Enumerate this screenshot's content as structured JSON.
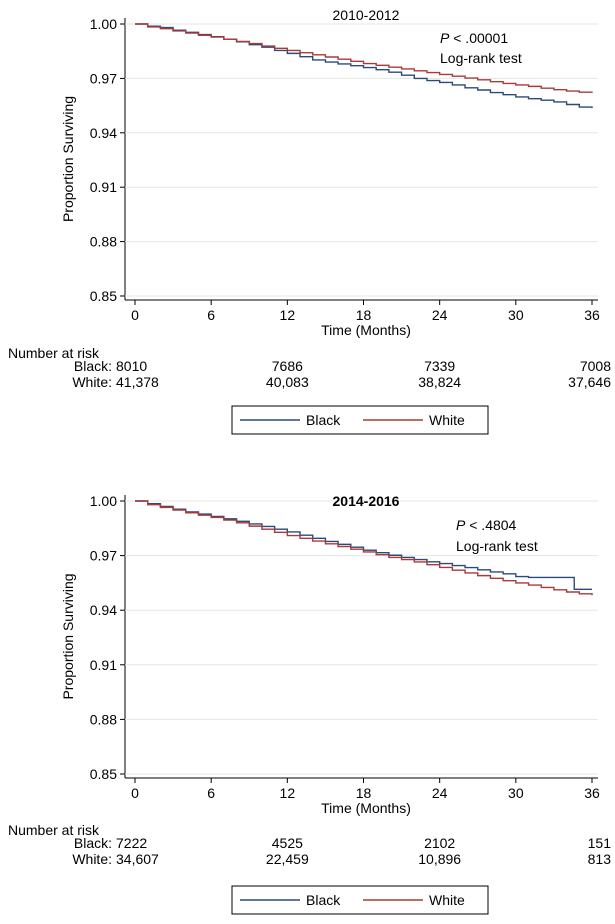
{
  "chart_data": [
    {
      "type": "line",
      "title": "2010-2012",
      "title_bold": false,
      "xlabel": "Time (Months)",
      "ylabel": "Proportion Surviving",
      "xlim": [
        0,
        36
      ],
      "ylim": [
        0.85,
        1.0
      ],
      "xticks": [
        "0",
        "6",
        "12",
        "18",
        "24",
        "30",
        "36"
      ],
      "yticks": [
        "0.85",
        "0.88",
        "0.91",
        "0.94",
        "0.97",
        "1.00"
      ],
      "annotation": {
        "p_label": "P",
        "p_value": "< .00001",
        "test": "Log-rank test"
      },
      "series": [
        {
          "name": "Black",
          "color": "#2b4a78",
          "points": [
            [
              0,
              1.0
            ],
            [
              1,
              0.9988
            ],
            [
              2,
              0.998
            ],
            [
              3,
              0.9966
            ],
            [
              4,
              0.9954
            ],
            [
              5,
              0.9942
            ],
            [
              6,
              0.993
            ],
            [
              7,
              0.9916
            ],
            [
              8,
              0.9902
            ],
            [
              9,
              0.9886
            ],
            [
              10,
              0.9872
            ],
            [
              11,
              0.9854
            ],
            [
              12,
              0.9838
            ],
            [
              13,
              0.982
            ],
            [
              14,
              0.9802
            ],
            [
              15,
              0.979
            ],
            [
              16,
              0.978
            ],
            [
              17,
              0.977
            ],
            [
              18,
              0.976
            ],
            [
              19,
              0.9748
            ],
            [
              20,
              0.9734
            ],
            [
              21,
              0.9718
            ],
            [
              22,
              0.97
            ],
            [
              23,
              0.9688
            ],
            [
              24,
              0.9678
            ],
            [
              25,
              0.9664
            ],
            [
              26,
              0.9648
            ],
            [
              27,
              0.9636
            ],
            [
              28,
              0.9622
            ],
            [
              29,
              0.961
            ],
            [
              30,
              0.9598
            ],
            [
              31,
              0.9588
            ],
            [
              32,
              0.958
            ],
            [
              33,
              0.957
            ],
            [
              34,
              0.9556
            ],
            [
              35,
              0.9542
            ],
            [
              36,
              0.9536
            ]
          ]
        },
        {
          "name": "White",
          "color": "#a83a3a",
          "points": [
            [
              0,
              1.0
            ],
            [
              1,
              0.9984
            ],
            [
              2,
              0.9974
            ],
            [
              3,
              0.9962
            ],
            [
              4,
              0.995
            ],
            [
              5,
              0.9938
            ],
            [
              6,
              0.9928
            ],
            [
              7,
              0.9916
            ],
            [
              8,
              0.9904
            ],
            [
              9,
              0.9892
            ],
            [
              10,
              0.9878
            ],
            [
              11,
              0.9866
            ],
            [
              12,
              0.9854
            ],
            [
              13,
              0.9842
            ],
            [
              14,
              0.983
            ],
            [
              15,
              0.9818
            ],
            [
              16,
              0.9806
            ],
            [
              17,
              0.9794
            ],
            [
              18,
              0.9782
            ],
            [
              19,
              0.9772
            ],
            [
              20,
              0.9762
            ],
            [
              21,
              0.9752
            ],
            [
              22,
              0.9742
            ],
            [
              23,
              0.9732
            ],
            [
              24,
              0.9722
            ],
            [
              25,
              0.9712
            ],
            [
              26,
              0.9702
            ],
            [
              27,
              0.9692
            ],
            [
              28,
              0.9682
            ],
            [
              29,
              0.9672
            ],
            [
              30,
              0.9664
            ],
            [
              31,
              0.9656
            ],
            [
              32,
              0.9646
            ],
            [
              33,
              0.9638
            ],
            [
              34,
              0.963
            ],
            [
              35,
              0.9624
            ],
            [
              36,
              0.962
            ]
          ]
        }
      ],
      "risk_table": {
        "heading": "Number at risk",
        "rows": [
          {
            "label": "Black:",
            "values": [
              "8010",
              "7686",
              "7339",
              "7008"
            ]
          },
          {
            "label": "White:",
            "values": [
              "41,378",
              "40,083",
              "38,824",
              "37,646"
            ]
          }
        ]
      },
      "legend": {
        "placement": "bottom-center",
        "items": [
          "Black",
          "White"
        ]
      }
    },
    {
      "type": "line",
      "title": "2014-2016",
      "title_bold": true,
      "xlabel": "Time (Months)",
      "ylabel": "Proportion Surviving",
      "xlim": [
        0,
        36
      ],
      "ylim": [
        0.85,
        1.0
      ],
      "xticks": [
        "0",
        "6",
        "12",
        "18",
        "24",
        "30",
        "36"
      ],
      "yticks": [
        "0.85",
        "0.88",
        "0.91",
        "0.94",
        "0.97",
        "1.00"
      ],
      "annotation": {
        "p_label": "P",
        "p_value": "< .4804",
        "test": "Log-rank test"
      },
      "series": [
        {
          "name": "Black",
          "color": "#2b4a78",
          "points": [
            [
              0,
              1.0
            ],
            [
              1,
              0.9985
            ],
            [
              2,
              0.997
            ],
            [
              3,
              0.9955
            ],
            [
              4,
              0.994
            ],
            [
              5,
              0.9928
            ],
            [
              6,
              0.9915
            ],
            [
              7,
              0.9902
            ],
            [
              8,
              0.9888
            ],
            [
              9,
              0.9874
            ],
            [
              10,
              0.986
            ],
            [
              11,
              0.9845
            ],
            [
              12,
              0.983
            ],
            [
              13,
              0.9812
            ],
            [
              14,
              0.9795
            ],
            [
              15,
              0.9778
            ],
            [
              16,
              0.9762
            ],
            [
              17,
              0.9746
            ],
            [
              18,
              0.973
            ],
            [
              19,
              0.9716
            ],
            [
              20,
              0.9702
            ],
            [
              21,
              0.969
            ],
            [
              22,
              0.9678
            ],
            [
              23,
              0.9666
            ],
            [
              24,
              0.9656
            ],
            [
              25,
              0.9645
            ],
            [
              26,
              0.9634
            ],
            [
              27,
              0.9622
            ],
            [
              28,
              0.961
            ],
            [
              29,
              0.96
            ],
            [
              30,
              0.9585
            ],
            [
              31,
              0.958
            ],
            [
              32,
              0.958
            ],
            [
              33,
              0.958
            ],
            [
              34,
              0.958
            ],
            [
              34.6,
              0.9515
            ],
            [
              36,
              0.9515
            ]
          ]
        },
        {
          "name": "White",
          "color": "#a83a3a",
          "points": [
            [
              0,
              1.0
            ],
            [
              1,
              0.998
            ],
            [
              2,
              0.9965
            ],
            [
              3,
              0.995
            ],
            [
              4,
              0.9935
            ],
            [
              5,
              0.9922
            ],
            [
              6,
              0.991
            ],
            [
              7,
              0.9895
            ],
            [
              8,
              0.988
            ],
            [
              9,
              0.9862
            ],
            [
              10,
              0.9845
            ],
            [
              11,
              0.9828
            ],
            [
              12,
              0.981
            ],
            [
              13,
              0.9795
            ],
            [
              14,
              0.978
            ],
            [
              15,
              0.9765
            ],
            [
              16,
              0.975
            ],
            [
              17,
              0.9735
            ],
            [
              18,
              0.972
            ],
            [
              19,
              0.9705
            ],
            [
              20,
              0.969
            ],
            [
              21,
              0.9678
            ],
            [
              22,
              0.9665
            ],
            [
              23,
              0.965
            ],
            [
              24,
              0.9635
            ],
            [
              25,
              0.962
            ],
            [
              26,
              0.9605
            ],
            [
              27,
              0.959
            ],
            [
              28,
              0.9575
            ],
            [
              29,
              0.9562
            ],
            [
              30,
              0.955
            ],
            [
              31,
              0.9538
            ],
            [
              32,
              0.9525
            ],
            [
              33,
              0.9512
            ],
            [
              34,
              0.95
            ],
            [
              35,
              0.949
            ],
            [
              36,
              0.9482
            ]
          ]
        }
      ],
      "risk_table": {
        "heading": "Number at risk",
        "rows": [
          {
            "label": "Black:",
            "values": [
              "7222",
              "4525",
              "2102",
              "151"
            ]
          },
          {
            "label": "White:",
            "values": [
              "34,607",
              "22,459",
              "10,896",
              "813"
            ]
          }
        ]
      },
      "legend": {
        "placement": "bottom-center",
        "items": [
          "Black",
          "White"
        ]
      }
    }
  ]
}
